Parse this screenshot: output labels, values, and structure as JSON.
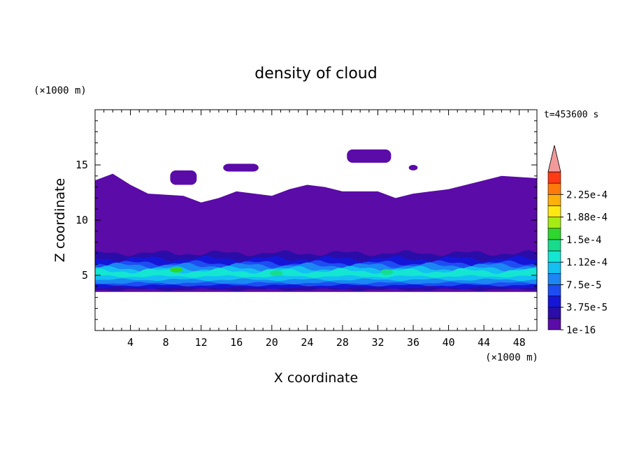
{
  "chart_data": {
    "type": "heatmap",
    "title": "density of cloud",
    "xlabel": "X coordinate",
    "ylabel": "Z coordinate",
    "x_unit": "(×1000 m)",
    "y_unit": "(×1000 m)",
    "time_label": "t=453600 s",
    "xlim": [
      0,
      50
    ],
    "ylim": [
      0,
      20
    ],
    "x_ticks": [
      4,
      8,
      12,
      16,
      20,
      24,
      28,
      32,
      36,
      40,
      44,
      48
    ],
    "y_ticks": [
      5,
      10,
      15
    ],
    "colorbar": {
      "labels": [
        "2.25e-4",
        "1.88e-4",
        "1.5e-4",
        "1.12e-4",
        "7.5e-5",
        "3.75e-5",
        "1e-16"
      ],
      "levels": [
        1e-16,
        1.875e-05,
        3.75e-05,
        5.625e-05,
        7.5e-05,
        9.375e-05,
        0.0001125,
        0.00013125,
        0.00015,
        0.00016875,
        0.0001875,
        0.00020625,
        0.000225,
        0.00024375
      ],
      "colors": [
        "#5a0ba8",
        "#2a0da8",
        "#1515d8",
        "#1d4df2",
        "#1c86f4",
        "#12c0f2",
        "#14e6d2",
        "#17dc8c",
        "#2ed62e",
        "#a6ec14",
        "#ffe812",
        "#ffb00a",
        "#ff7a0a",
        "#ff3a14",
        "#f29a9a"
      ]
    },
    "layers": [
      {
        "level": "1e-16",
        "color": "#5a0ba8",
        "z_bottom": 3.5,
        "z_top_profile": [
          [
            0,
            13.6
          ],
          [
            2,
            14.2
          ],
          [
            4,
            13.2
          ],
          [
            6,
            12.4
          ],
          [
            10,
            12.2
          ],
          [
            12,
            11.6
          ],
          [
            14,
            12.0
          ],
          [
            16,
            12.6
          ],
          [
            20,
            12.2
          ],
          [
            22,
            12.8
          ],
          [
            24,
            13.2
          ],
          [
            26,
            13.0
          ],
          [
            28,
            12.6
          ],
          [
            32,
            12.6
          ],
          [
            34,
            12.0
          ],
          [
            36,
            12.4
          ],
          [
            38,
            12.6
          ],
          [
            40,
            12.8
          ],
          [
            44,
            13.6
          ],
          [
            46,
            14.0
          ],
          [
            50,
            13.8
          ]
        ]
      },
      {
        "level": "1.875e-5",
        "color": "#2a0da8",
        "z_bottom": 3.7,
        "z_top": 7.0
      },
      {
        "level": "3.75e-5",
        "color": "#1515d8",
        "z_bottom": 3.9,
        "z_top": 6.5
      },
      {
        "level": "5.625e-5",
        "color": "#1d4df2",
        "z_bottom": 4.1,
        "z_top": 6.1
      },
      {
        "level": "7.5e-5",
        "color": "#1c86f4",
        "z_bottom": 4.3,
        "z_top": 5.9
      },
      {
        "level": "9.375e-5",
        "color": "#12c0f2",
        "z_bottom": 4.6,
        "z_top": 5.6
      },
      {
        "level": "1.125e-4",
        "color": "#14e6d2",
        "z_bottom": 4.9,
        "z_top": 5.4
      }
    ],
    "upper_patches": [
      {
        "x": [
          8.5,
          11.5
        ],
        "z": [
          13.2,
          14.5
        ]
      },
      {
        "x": [
          14.5,
          18.5
        ],
        "z": [
          14.4,
          15.1
        ]
      },
      {
        "x": [
          28.5,
          33.5
        ],
        "z": [
          15.2,
          16.4
        ]
      },
      {
        "x": [
          35.5,
          36.5
        ],
        "z": [
          14.5,
          15.0
        ]
      }
    ],
    "peaks": [
      {
        "x": 9.2,
        "z": 5.5,
        "level": "1.5e-4"
      },
      {
        "x": 20.5,
        "z": 5.2,
        "level": "1.3125e-4"
      },
      {
        "x": 33.0,
        "z": 5.3,
        "level": "1.3125e-4"
      }
    ]
  }
}
